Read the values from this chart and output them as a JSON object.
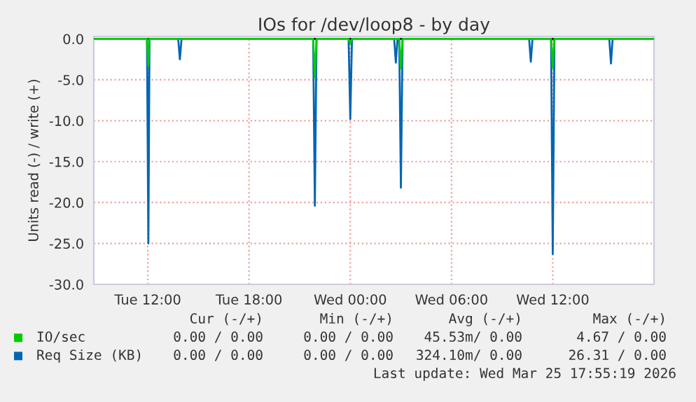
{
  "chart_data": {
    "type": "line",
    "title": "IOs for /dev/loop8 - by day",
    "ylabel": "Units read (-) / write (+)",
    "series": [
      {
        "name": "IO/sec",
        "color": "#00cc00",
        "x": [
          "2026-03-24T08:48",
          "2026-03-24T11:57",
          "2026-03-24T12:02",
          "2026-03-24T12:06",
          "2026-03-24T21:48",
          "2026-03-24T21:54",
          "2026-03-24T22:00",
          "2026-03-24T23:54",
          "2026-03-25T00:00",
          "2026-03-25T00:06",
          "2026-03-25T02:54",
          "2026-03-25T03:00",
          "2026-03-25T03:06",
          "2026-03-25T11:54",
          "2026-03-25T12:00",
          "2026-03-25T12:06",
          "2026-03-25T18:00"
        ],
        "values": [
          0,
          0,
          -3.3,
          0,
          0,
          -4.7,
          0,
          0,
          -0.6,
          0,
          0,
          -3.6,
          0,
          0,
          -3.5,
          0,
          0
        ]
      },
      {
        "name": "Req Size (KB)",
        "color": "#0066b3",
        "x": [
          "2026-03-24T08:48",
          "2026-03-24T11:57",
          "2026-03-24T12:02",
          "2026-03-24T12:06",
          "2026-03-24T13:48",
          "2026-03-24T13:54",
          "2026-03-24T14:00",
          "2026-03-24T21:48",
          "2026-03-24T21:54",
          "2026-03-24T22:00",
          "2026-03-24T23:54",
          "2026-03-25T00:00",
          "2026-03-25T00:06",
          "2026-03-25T02:36",
          "2026-03-25T02:42",
          "2026-03-25T02:48",
          "2026-03-25T02:54",
          "2026-03-25T03:00",
          "2026-03-25T03:06",
          "2026-03-25T10:36",
          "2026-03-25T10:42",
          "2026-03-25T10:48",
          "2026-03-25T11:54",
          "2026-03-25T12:00",
          "2026-03-25T12:06",
          "2026-03-25T15:21",
          "2026-03-25T15:27",
          "2026-03-25T15:33",
          "2026-03-25T18:00"
        ],
        "values": [
          0,
          0,
          -25.0,
          0,
          0,
          -2.5,
          0,
          0,
          -20.4,
          0,
          0,
          -9.8,
          0,
          0,
          -2.9,
          0,
          0,
          -18.2,
          0,
          0,
          -2.8,
          0,
          0,
          -26.3,
          0,
          0,
          -3.0,
          0,
          0
        ]
      }
    ],
    "xlim": [
      "2026-03-24T08:48",
      "2026-03-25T18:00"
    ],
    "xticks": [
      {
        "value": "2026-03-24T12:00",
        "label": "Tue 12:00"
      },
      {
        "value": "2026-03-24T18:00",
        "label": "Tue 18:00"
      },
      {
        "value": "2026-03-25T00:00",
        "label": "Wed 00:00"
      },
      {
        "value": "2026-03-25T06:00",
        "label": "Wed 06:00"
      },
      {
        "value": "2026-03-25T12:00",
        "label": "Wed 12:00"
      }
    ],
    "ylim": [
      -30,
      0.3
    ],
    "yticks": [
      {
        "value": -30,
        "label": "-30.0"
      },
      {
        "value": -25,
        "label": "-25.0"
      },
      {
        "value": -20,
        "label": "-20.0"
      },
      {
        "value": -15,
        "label": "-15.0"
      },
      {
        "value": -10,
        "label": "-10.0"
      },
      {
        "value": -5,
        "label": "-5.0"
      },
      {
        "value": 0,
        "label": "0.0"
      }
    ],
    "ref_lines": [
      {
        "axis": "y",
        "value": 0,
        "color": "#000000"
      }
    ],
    "grid": true,
    "legend": "bottom",
    "annotations": [
      "Cur (-/+)",
      "Min (-/+)",
      "Avg (-/+)",
      "Max (-/+)",
      "0.00 / 0.00",
      "0.00 / 0.00",
      "45.53m/ 0.00",
      "4.67 / 0.00",
      "0.00 / 0.00",
      "0.00 / 0.00",
      "324.10m/ 0.00",
      "26.31 / 0.00",
      "Last update: Wed Mar 25 17:55:19 2026"
    ]
  }
}
